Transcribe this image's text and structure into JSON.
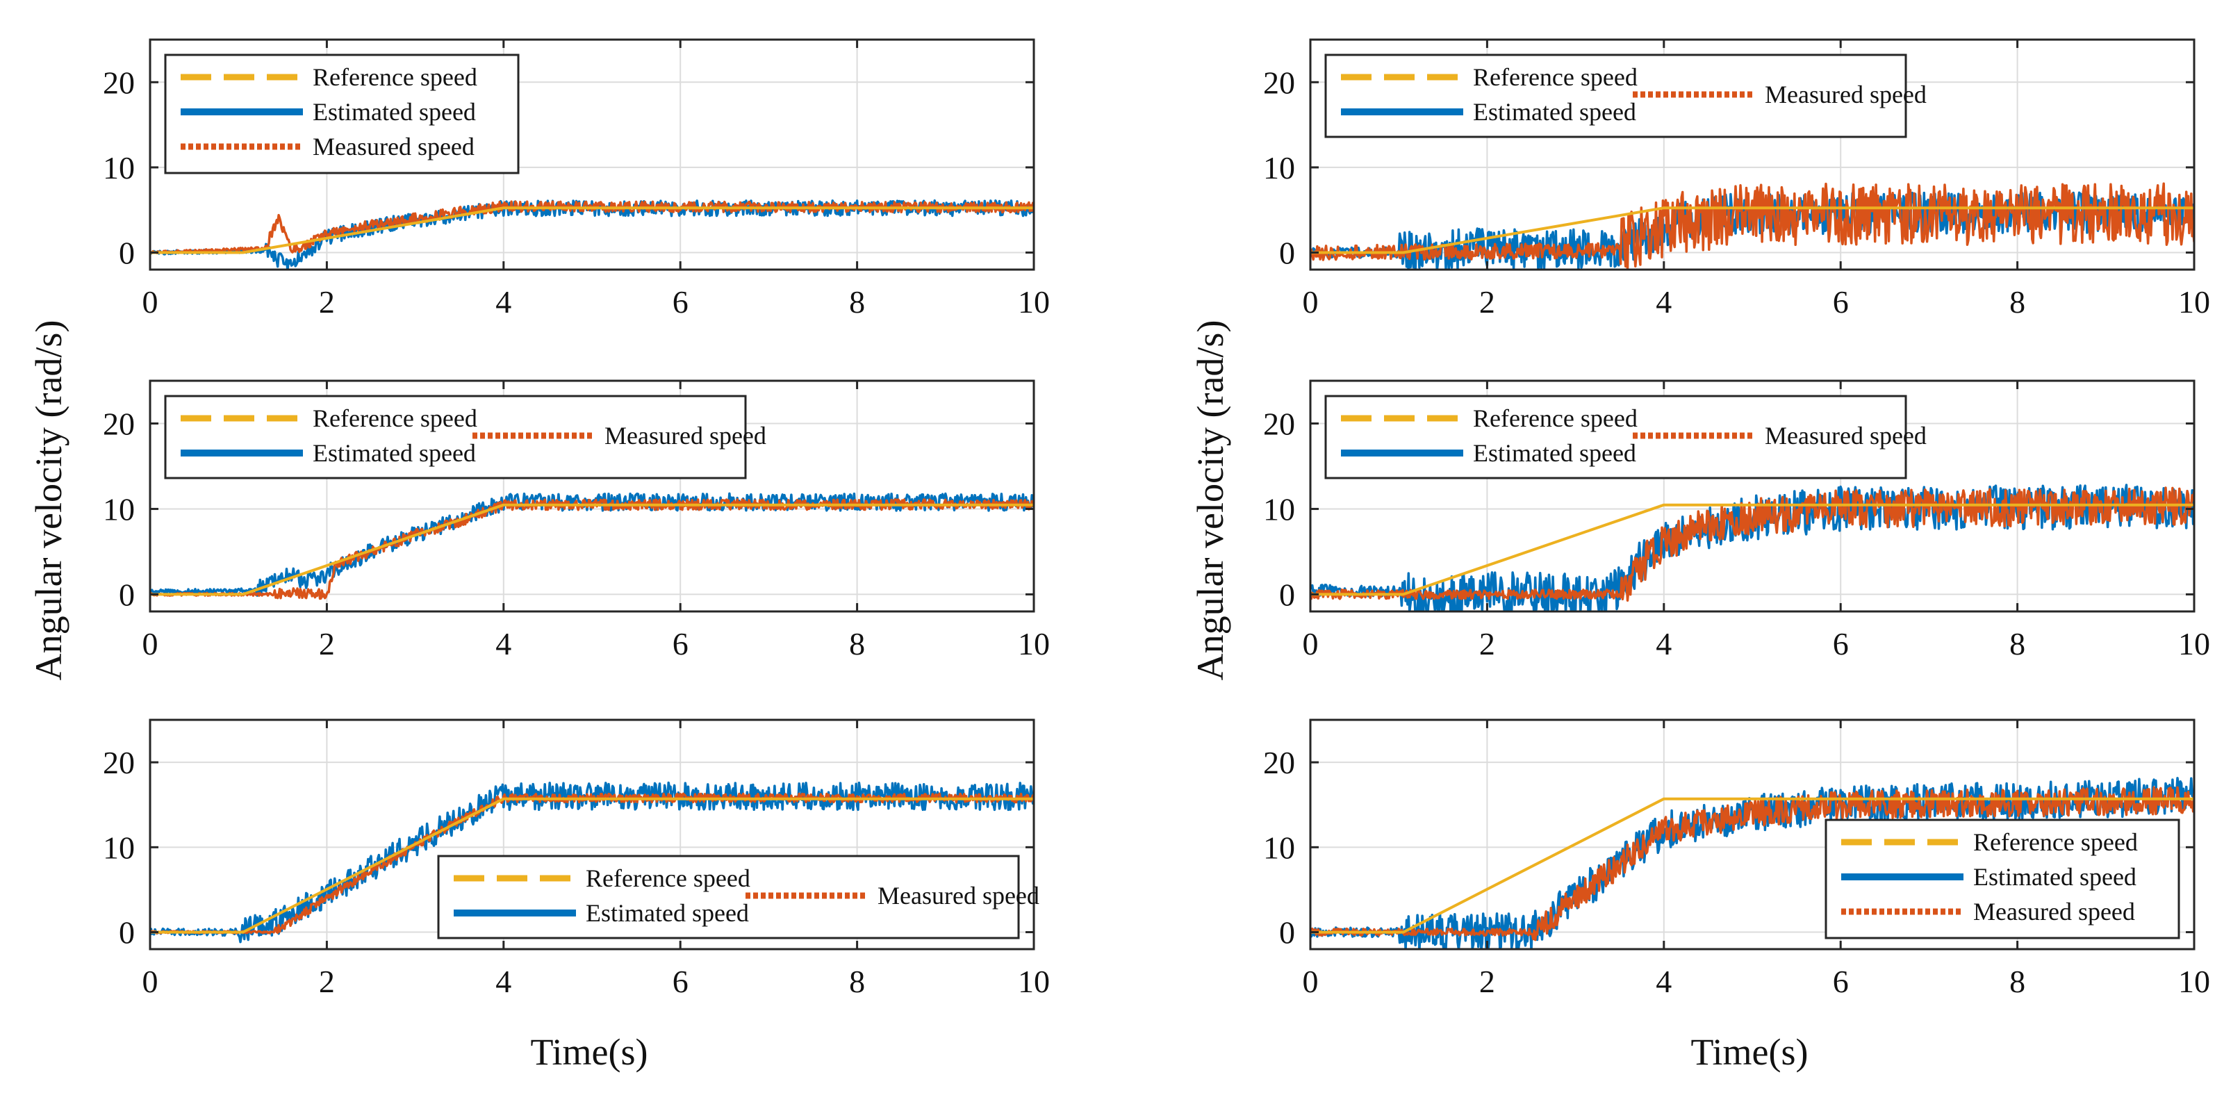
{
  "figure": {
    "ylabel": "Angular velocity (rad/s)",
    "xlabel": "Time(s)"
  },
  "colors": {
    "reference": "#EDB120",
    "estimated": "#0072BD",
    "measured": "#D95319",
    "axis": "#262626",
    "grid": "#dcdcdc"
  },
  "chart_data": [
    {
      "id": "left-1",
      "type": "line",
      "column": "left",
      "row": 1,
      "xlim": [
        0,
        10
      ],
      "ylim": [
        -2,
        25
      ],
      "xticks": [
        0,
        2,
        4,
        6,
        8,
        10
      ],
      "yticks": [
        0,
        10,
        20
      ],
      "legend": {
        "loc": "top-left",
        "layout": "stack"
      },
      "series": [
        {
          "name": "Reference speed",
          "style": "reference",
          "x": [
            0,
            1.05,
            4,
            10
          ],
          "y": [
            0,
            0,
            5.24,
            5.24
          ]
        },
        {
          "name": "Estimated speed",
          "style": "estimated",
          "x": [
            0,
            1.3,
            1.55,
            1.7,
            2,
            2.5,
            3,
            3.5,
            4,
            10
          ],
          "y": [
            0,
            0.2,
            -1.5,
            -0.5,
            1.8,
            3,
            3.8,
            4.5,
            5.2,
            5.2
          ],
          "noise": 0.9
        },
        {
          "name": "Measured speed",
          "style": "measured",
          "x": [
            0,
            1.3,
            1.45,
            1.6,
            1.75,
            2,
            2.5,
            3,
            3.5,
            4,
            10
          ],
          "y": [
            0,
            0.5,
            4.2,
            0.3,
            0.8,
            2.2,
            3.2,
            4,
            4.8,
            5.4,
            5.3
          ],
          "noise": 0.6
        }
      ]
    },
    {
      "id": "left-2",
      "type": "line",
      "column": "left",
      "row": 2,
      "xlim": [
        0,
        10
      ],
      "ylim": [
        -2,
        25
      ],
      "xticks": [
        0,
        2,
        4,
        6,
        8,
        10
      ],
      "yticks": [
        0,
        10,
        20
      ],
      "legend": {
        "loc": "top-left",
        "layout": "two-column"
      },
      "series": [
        {
          "name": "Reference speed",
          "style": "reference",
          "x": [
            0,
            1.05,
            4,
            10
          ],
          "y": [
            0,
            0,
            10.47,
            10.47
          ]
        },
        {
          "name": "Estimated speed",
          "style": "estimated",
          "x": [
            0,
            1.2,
            1.5,
            1.8,
            2.2,
            2.6,
            3,
            3.5,
            4,
            10
          ],
          "y": [
            0.3,
            0.5,
            2.5,
            1.5,
            3.5,
            5.5,
            7,
            8.8,
            10.8,
            10.8
          ],
          "noise": 1.0
        },
        {
          "name": "Measured speed",
          "style": "measured",
          "x": [
            0,
            1.4,
            1.5,
            2,
            2.1,
            2.5,
            3,
            3.5,
            4,
            10
          ],
          "y": [
            0,
            0,
            0.2,
            0,
            3.5,
            5,
            7,
            8.5,
            10.5,
            10.5
          ],
          "noise": 0.6
        }
      ]
    },
    {
      "id": "left-3",
      "type": "line",
      "column": "left",
      "row": 3,
      "xlim": [
        0,
        10
      ],
      "ylim": [
        -2,
        25
      ],
      "xticks": [
        0,
        2,
        4,
        6,
        8,
        10
      ],
      "yticks": [
        0,
        10,
        20
      ],
      "legend": {
        "loc": "bottom-right",
        "layout": "two-column"
      },
      "series": [
        {
          "name": "Reference speed",
          "style": "reference",
          "x": [
            0,
            1.05,
            4,
            10
          ],
          "y": [
            0,
            0,
            15.7,
            15.7
          ]
        },
        {
          "name": "Estimated speed",
          "style": "estimated",
          "x": [
            0,
            1.0,
            1.5,
            2,
            2.5,
            3,
            3.5,
            4,
            10
          ],
          "y": [
            0,
            0,
            1.5,
            4.5,
            7.5,
            10.5,
            13.5,
            16,
            16
          ],
          "noise": 1.6
        },
        {
          "name": "Measured speed",
          "style": "measured",
          "x": [
            0,
            1.4,
            2,
            2.5,
            3,
            3.5,
            4,
            10
          ],
          "y": [
            0,
            0,
            4,
            7.2,
            10.2,
            13.2,
            15.8,
            15.8
          ],
          "noise": 0.5
        }
      ]
    },
    {
      "id": "right-1",
      "type": "line",
      "column": "right",
      "row": 1,
      "xlim": [
        0,
        10
      ],
      "ylim": [
        -2,
        25
      ],
      "xticks": [
        0,
        2,
        4,
        6,
        8,
        10
      ],
      "yticks": [
        0,
        10,
        20
      ],
      "legend": {
        "loc": "top-left",
        "layout": "two-column"
      },
      "series": [
        {
          "name": "Reference speed",
          "style": "reference",
          "x": [
            0,
            1.05,
            4,
            10
          ],
          "y": [
            0,
            0,
            5.24,
            5.24
          ]
        },
        {
          "name": "Estimated speed",
          "style": "estimated",
          "x": [
            0,
            1.0,
            2.0,
            2.8,
            3.5,
            4,
            4.5,
            10
          ],
          "y": [
            0,
            0,
            0.5,
            0.3,
            0.5,
            3,
            4.5,
            4.8
          ],
          "noise": 2.4
        },
        {
          "name": "Measured speed",
          "style": "measured",
          "x": [
            0,
            3.5,
            3.8,
            4.2,
            5,
            10
          ],
          "y": [
            0,
            0.2,
            2.5,
            3.5,
            4.5,
            4.5
          ],
          "noise": 3.6
        }
      ]
    },
    {
      "id": "right-2",
      "type": "line",
      "column": "right",
      "row": 2,
      "xlim": [
        0,
        10
      ],
      "ylim": [
        -2,
        25
      ],
      "xticks": [
        0,
        2,
        4,
        6,
        8,
        10
      ],
      "yticks": [
        0,
        10,
        20
      ],
      "legend": {
        "loc": "top-left",
        "layout": "two-column"
      },
      "series": [
        {
          "name": "Reference speed",
          "style": "reference",
          "x": [
            0,
            1.05,
            4,
            10
          ],
          "y": [
            0,
            0,
            10.47,
            10.47
          ]
        },
        {
          "name": "Estimated speed",
          "style": "estimated",
          "x": [
            0,
            1.0,
            1.4,
            1.8,
            3.4,
            3.6,
            4,
            4.5,
            5,
            6,
            10
          ],
          "y": [
            0.5,
            0.3,
            -1,
            0,
            0,
            2.5,
            6,
            8,
            9,
            10,
            10.3
          ],
          "noise": 2.6
        },
        {
          "name": "Measured speed",
          "style": "measured",
          "x": [
            0,
            3.5,
            3.7,
            4,
            4.5,
            5,
            6,
            10
          ],
          "y": [
            0,
            0,
            3,
            6,
            8,
            9,
            10,
            10.3
          ],
          "noise": 2.2
        }
      ]
    },
    {
      "id": "right-3",
      "type": "line",
      "column": "right",
      "row": 3,
      "xlim": [
        0,
        10
      ],
      "ylim": [
        -2,
        25
      ],
      "xticks": [
        0,
        2,
        4,
        6,
        8,
        10
      ],
      "yticks": [
        0,
        10,
        20
      ],
      "legend": {
        "loc": "bottom-right",
        "layout": "stack"
      },
      "series": [
        {
          "name": "Reference speed",
          "style": "reference",
          "x": [
            0,
            1.05,
            4,
            10
          ],
          "y": [
            0,
            0,
            15.7,
            15.7
          ]
        },
        {
          "name": "Estimated speed",
          "style": "estimated",
          "x": [
            0,
            1.0,
            2.5,
            3,
            3.5,
            4,
            5,
            6,
            10
          ],
          "y": [
            0,
            0,
            0,
            4,
            8,
            12,
            14,
            15,
            16
          ],
          "noise": 2.2
        },
        {
          "name": "Measured speed",
          "style": "measured",
          "x": [
            0,
            2.5,
            3,
            3.5,
            4,
            5,
            6,
            10
          ],
          "y": [
            0,
            0,
            4,
            8,
            12,
            14,
            15,
            15.5
          ],
          "noise": 1.6
        }
      ]
    }
  ]
}
